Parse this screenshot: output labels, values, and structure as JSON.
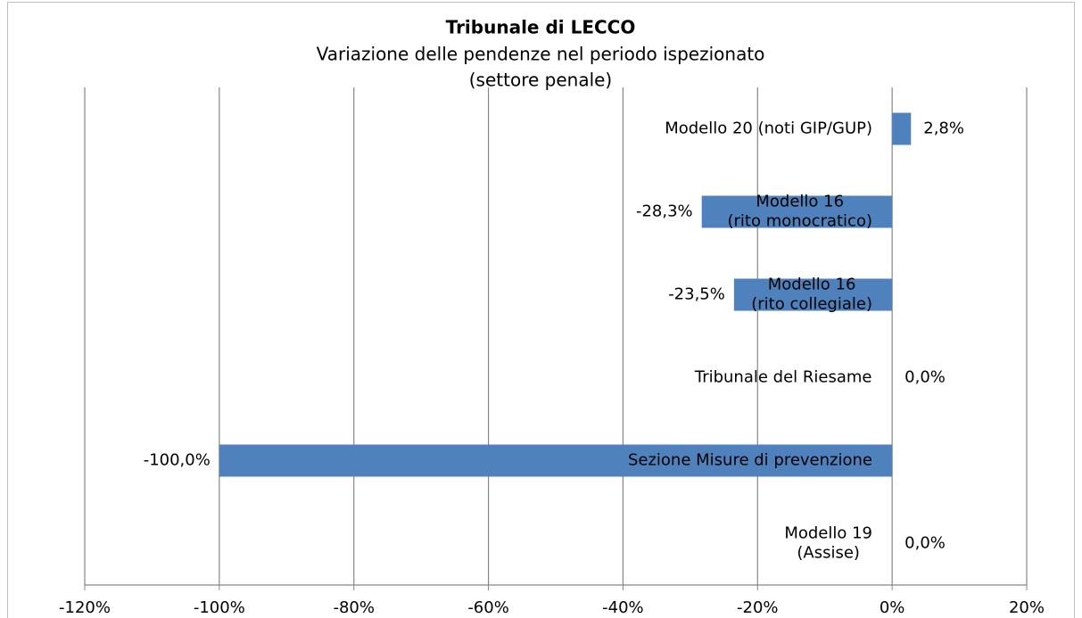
{
  "chart_data": {
    "type": "hbar",
    "title": "Tribunale di LECCO",
    "subtitle": "Variazione delle pendenze nel periodo ispezionato",
    "subtitle2": "(settore penale)",
    "categories": [
      "Modello 20 (noti GIP/GUP)",
      "Modello 16\n(rito monocratico)",
      "Modello 16\n(rito collegiale)",
      "Tribunale del Riesame",
      "Sezione Misure di prevenzione",
      "Modello 19\n(Assise)"
    ],
    "values": [
      2.8,
      -28.3,
      -23.5,
      0.0,
      -100.0,
      0.0
    ],
    "value_labels": [
      "2,8%",
      "-28,3%",
      "-23,5%",
      "0,0%",
      "-100,0%",
      "0,0%"
    ],
    "color": "#4f81bd",
    "xlim": [
      -120,
      20
    ],
    "xticks": [
      {
        "value": -120,
        "label": "-120%"
      },
      {
        "value": -100,
        "label": "-100%"
      },
      {
        "value": -80,
        "label": "-80%"
      },
      {
        "value": -60,
        "label": "-60%"
      },
      {
        "value": -40,
        "label": "-40%"
      },
      {
        "value": -20,
        "label": "-20%"
      },
      {
        "value": 0,
        "label": "0%"
      },
      {
        "value": 20,
        "label": "20%"
      }
    ],
    "grid": true
  }
}
